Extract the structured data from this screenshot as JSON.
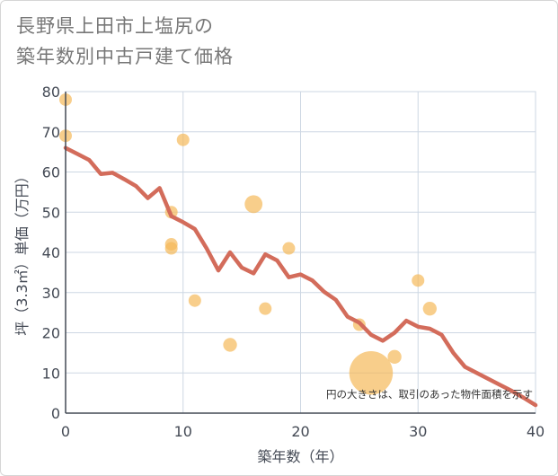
{
  "title_line1": "長野県上田市上塩尻の",
  "title_line2": "築年数別中古戸建て価格",
  "chart_data": {
    "type": "scatter",
    "title": "長野県上田市上塩尻の築年数別中古戸建て価格",
    "xlabel": "築年数（年）",
    "ylabel": "坪（3.3㎡）単価（万円）",
    "xlim": [
      0,
      40
    ],
    "ylim": [
      0,
      80
    ],
    "x_ticks": [
      "0",
      "10",
      "20",
      "30",
      "40"
    ],
    "y_ticks": [
      "0",
      "10",
      "20",
      "30",
      "40",
      "50",
      "60",
      "70",
      "80"
    ],
    "x_tick_values": [
      0,
      10,
      20,
      30,
      40
    ],
    "y_tick_values": [
      0,
      10,
      20,
      30,
      40,
      50,
      60,
      70,
      80
    ],
    "grid": true,
    "note": "円の大きさは、取引のあった物件面積を示す",
    "colors": {
      "points": "#f5b95a",
      "trend": "#d36c5b",
      "grid": "#cdd7e3",
      "axis": "#444a55"
    },
    "points": [
      {
        "x": 0,
        "y": 78,
        "size": 1
      },
      {
        "x": 0,
        "y": 69,
        "size": 1
      },
      {
        "x": 9,
        "y": 50,
        "size": 1
      },
      {
        "x": 9,
        "y": 42,
        "size": 1
      },
      {
        "x": 9,
        "y": 41,
        "size": 1
      },
      {
        "x": 10,
        "y": 68,
        "size": 1
      },
      {
        "x": 11,
        "y": 28,
        "size": 1
      },
      {
        "x": 14,
        "y": 17,
        "size": 1.2
      },
      {
        "x": 16,
        "y": 52,
        "size": 2
      },
      {
        "x": 17,
        "y": 26,
        "size": 1
      },
      {
        "x": 19,
        "y": 41,
        "size": 1
      },
      {
        "x": 25,
        "y": 22,
        "size": 1
      },
      {
        "x": 26,
        "y": 10,
        "size": 12
      },
      {
        "x": 28,
        "y": 14,
        "size": 1.2
      },
      {
        "x": 30,
        "y": 33,
        "size": 1
      },
      {
        "x": 31,
        "y": 26,
        "size": 1.2
      }
    ],
    "trend": {
      "x": [
        0,
        1,
        2,
        3,
        4,
        5,
        6,
        7,
        8,
        9,
        10,
        11,
        12,
        13,
        14,
        15,
        16,
        17,
        18,
        19,
        20,
        21,
        22,
        23,
        24,
        25,
        26,
        27,
        28,
        29,
        30,
        31,
        32,
        33,
        34,
        35,
        36,
        37,
        38,
        39,
        40
      ],
      "y": [
        66,
        64.5,
        63,
        59.5,
        59.8,
        58.2,
        56.5,
        53.5,
        56,
        49,
        47.5,
        45.8,
        41,
        35.5,
        40,
        36.2,
        34.8,
        39.5,
        38,
        33.8,
        34.5,
        33,
        30.2,
        28.2,
        24,
        22.5,
        19.5,
        18,
        20,
        23,
        21.5,
        21,
        19.5,
        15,
        11.5,
        10,
        8.5,
        7,
        5.5,
        3.8,
        2
      ]
    }
  }
}
